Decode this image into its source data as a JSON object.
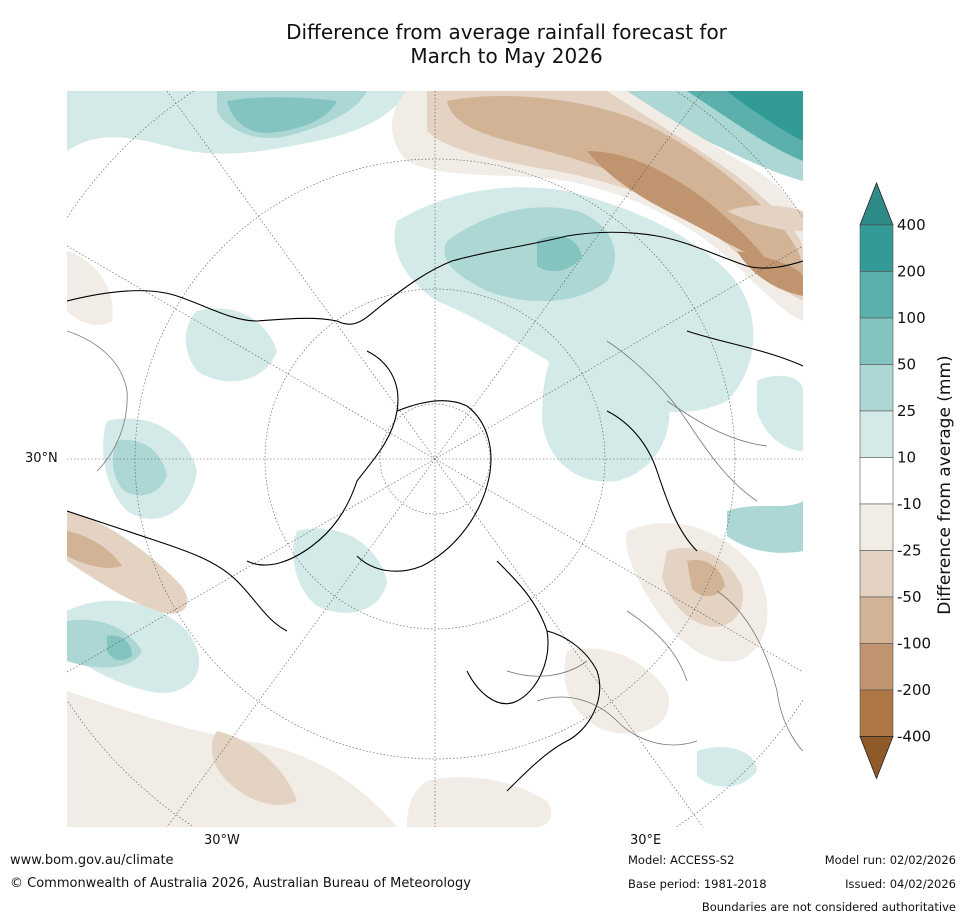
{
  "title": {
    "line1": "Difference from average rainfall forecast for",
    "line2": "March to May 2026"
  },
  "axis_labels": {
    "lat30": "30°N",
    "lon_w": "30°W",
    "lon_e": "30°E"
  },
  "colorbar": {
    "title": "Difference from average (mm)",
    "labels": [
      "400",
      "200",
      "100",
      "50",
      "25",
      "10",
      "-10",
      "-25",
      "-50",
      "-100",
      "-200",
      "-400"
    ],
    "colors": [
      "#2e8b88",
      "#339b96",
      "#5bb0ab",
      "#84c4c0",
      "#acd7d5",
      "#d4eae8",
      "#ffffff",
      "#f1ece6",
      "#e4d2c3",
      "#d2b396",
      "#bf946e",
      "#ad7645",
      "#8f5a2a"
    ]
  },
  "footer": {
    "url": "www.bom.gov.au/climate",
    "copyright": "© Commonwealth of Australia 2026, Australian Bureau of Meteorology",
    "model": "Model: ACCESS-S2",
    "base_period": "Base period: 1981-2018",
    "model_run": "Model run: 02/02/2026",
    "issued": "Issued: 04/02/2026",
    "disclaimer": "Boundaries are not considered authoritative"
  }
}
